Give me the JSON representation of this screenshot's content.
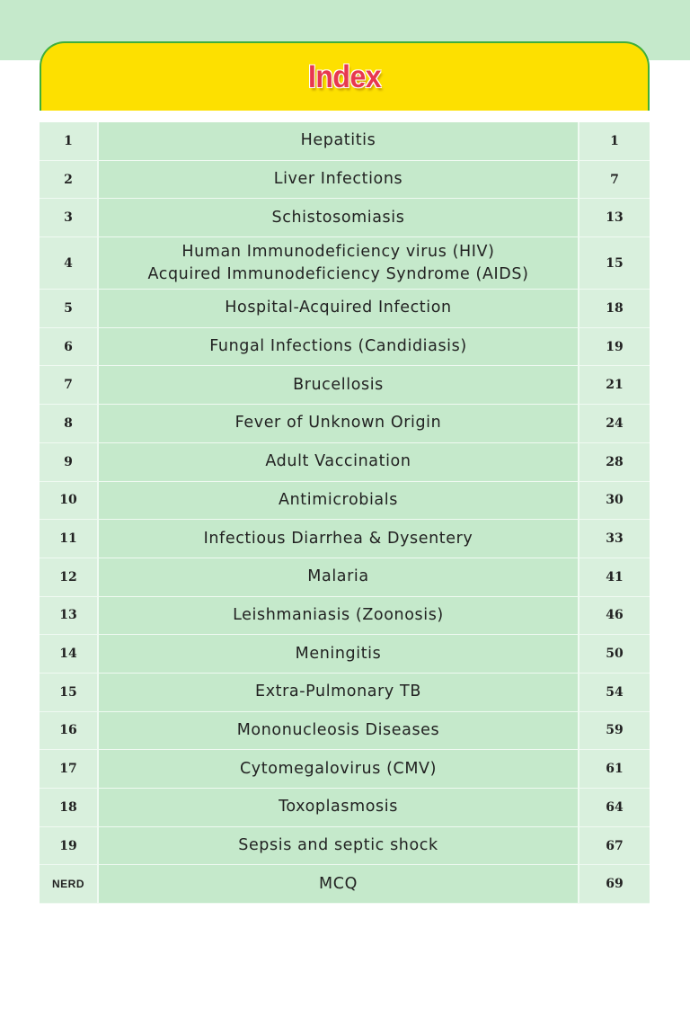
{
  "title": "Index",
  "logo_text": "NERD",
  "rows": [
    {
      "num": "1",
      "topic": "Hepatitis",
      "page": "1"
    },
    {
      "num": "2",
      "topic": "Liver Infections",
      "page": "7"
    },
    {
      "num": "3",
      "topic": "Schistosomiasis",
      "page": "13"
    },
    {
      "num": "4",
      "topic": "Human Immunodeficiency virus (HIV)",
      "topic2": "Acquired Immunodeficiency Syndrome (AIDS)",
      "page": "15"
    },
    {
      "num": "5",
      "topic": "Hospital-Acquired Infection",
      "page": "18"
    },
    {
      "num": "6",
      "topic": "Fungal Infections (Candidiasis)",
      "page": "19"
    },
    {
      "num": "7",
      "topic": "Brucellosis",
      "page": "21"
    },
    {
      "num": "8",
      "topic": "Fever of Unknown Origin",
      "page": "24"
    },
    {
      "num": "9",
      "topic": "Adult Vaccination",
      "page": "28"
    },
    {
      "num": "10",
      "topic": "Antimicrobials",
      "page": "30"
    },
    {
      "num": "11",
      "topic": "Infectious Diarrhea & Dysentery",
      "page": "33"
    },
    {
      "num": "12",
      "topic": "Malaria",
      "page": "41"
    },
    {
      "num": "13",
      "topic": "Leishmaniasis (Zoonosis)",
      "page": "46"
    },
    {
      "num": "14",
      "topic": "Meningitis",
      "page": "50"
    },
    {
      "num": "15",
      "topic": "Extra-Pulmonary TB",
      "page": "54"
    },
    {
      "num": "16",
      "topic": "Mononucleosis Diseases",
      "page": "59"
    },
    {
      "num": "17",
      "topic": "Cytomegalovirus (CMV)",
      "page": "61"
    },
    {
      "num": "18",
      "topic": "Toxoplasmosis",
      "page": "64"
    },
    {
      "num": "19",
      "topic": "Sepsis and septic shock",
      "page": "67"
    },
    {
      "num": "",
      "topic": "MCQ",
      "page": "69"
    }
  ],
  "colors": {
    "band": "#c5e9cb",
    "header": "#fde000",
    "title": "#e8384f",
    "border": "#3fae3a"
  }
}
